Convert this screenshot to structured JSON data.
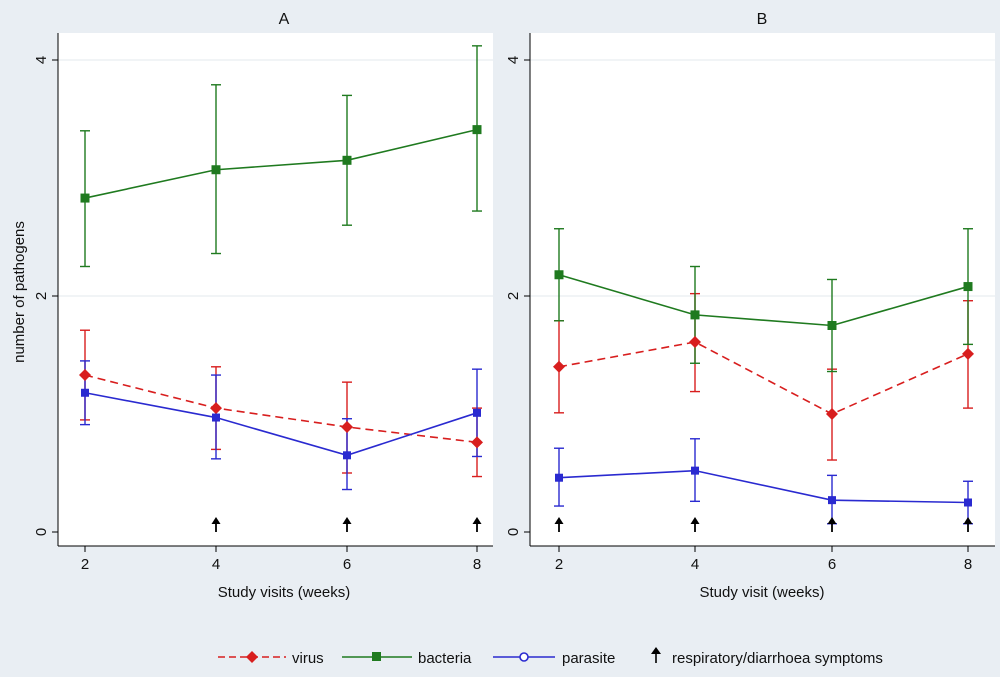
{
  "legend": {
    "virus": "virus",
    "bacteria": "bacteria",
    "parasite": "parasite",
    "symptoms": "respiratory/diarrhoea symptoms"
  },
  "colors": {
    "virus": "#d81e1e",
    "bacteria": "#1f7a1f",
    "parasite": "#2a2ad0",
    "symptoms": "#000000",
    "plot_background": "#ffffff",
    "outer_background": "#e9eef3"
  },
  "chart_data": [
    {
      "type": "line",
      "title": "A",
      "xlabel": "Study visits (weeks)",
      "ylabel": "number of pathogens",
      "x": [
        2,
        4,
        6,
        8
      ],
      "xticks": [
        "2",
        "4",
        "6",
        "8"
      ],
      "yticks": [
        "0",
        "2",
        "4"
      ],
      "xlim": [
        2,
        8
      ],
      "ylim": [
        0,
        4.25
      ],
      "series": [
        {
          "name": "virus",
          "key": "virus",
          "dashed": true,
          "marker": "diamond",
          "values": [
            1.33,
            1.05,
            0.89,
            0.76
          ],
          "lower": [
            0.95,
            0.7,
            0.5,
            0.47
          ],
          "upper": [
            1.71,
            1.4,
            1.27,
            1.05
          ]
        },
        {
          "name": "bacteria",
          "key": "bacteria",
          "dashed": false,
          "marker": "square",
          "values": [
            2.83,
            3.07,
            3.15,
            3.41
          ],
          "lower": [
            2.25,
            2.36,
            2.6,
            2.72
          ],
          "upper": [
            3.4,
            3.79,
            3.7,
            4.12
          ]
        },
        {
          "name": "parasite",
          "key": "parasite",
          "dashed": false,
          "marker": "circle",
          "values": [
            1.18,
            0.97,
            0.65,
            1.01
          ],
          "lower": [
            0.91,
            0.62,
            0.36,
            0.64
          ],
          "upper": [
            1.45,
            1.33,
            0.96,
            1.38
          ]
        }
      ],
      "symptom_markers_x": [
        4,
        6,
        8
      ]
    },
    {
      "type": "line",
      "title": "B",
      "xlabel": "Study visit (weeks)",
      "ylabel": "",
      "x": [
        2,
        4,
        6,
        8
      ],
      "xticks": [
        "2",
        "4",
        "6",
        "8"
      ],
      "yticks": [
        "0",
        "2",
        "4"
      ],
      "xlim": [
        2,
        8
      ],
      "ylim": [
        0,
        4.25
      ],
      "series": [
        {
          "name": "virus",
          "key": "virus",
          "dashed": true,
          "marker": "diamond",
          "values": [
            1.4,
            1.61,
            1.0,
            1.51
          ],
          "lower": [
            1.01,
            1.19,
            0.61,
            1.05
          ],
          "upper": [
            1.79,
            2.02,
            1.38,
            1.96
          ]
        },
        {
          "name": "bacteria",
          "key": "bacteria",
          "dashed": false,
          "marker": "square",
          "values": [
            2.18,
            1.84,
            1.75,
            2.08
          ],
          "lower": [
            1.79,
            1.43,
            1.36,
            1.59
          ],
          "upper": [
            2.57,
            2.25,
            2.14,
            2.57
          ]
        },
        {
          "name": "parasite",
          "key": "parasite",
          "dashed": false,
          "marker": "circle",
          "values": [
            0.46,
            0.52,
            0.27,
            0.25
          ],
          "lower": [
            0.22,
            0.26,
            0.07,
            0.07
          ],
          "upper": [
            0.71,
            0.79,
            0.48,
            0.43
          ]
        }
      ],
      "symptom_markers_x": [
        2,
        4,
        6,
        8
      ]
    }
  ]
}
